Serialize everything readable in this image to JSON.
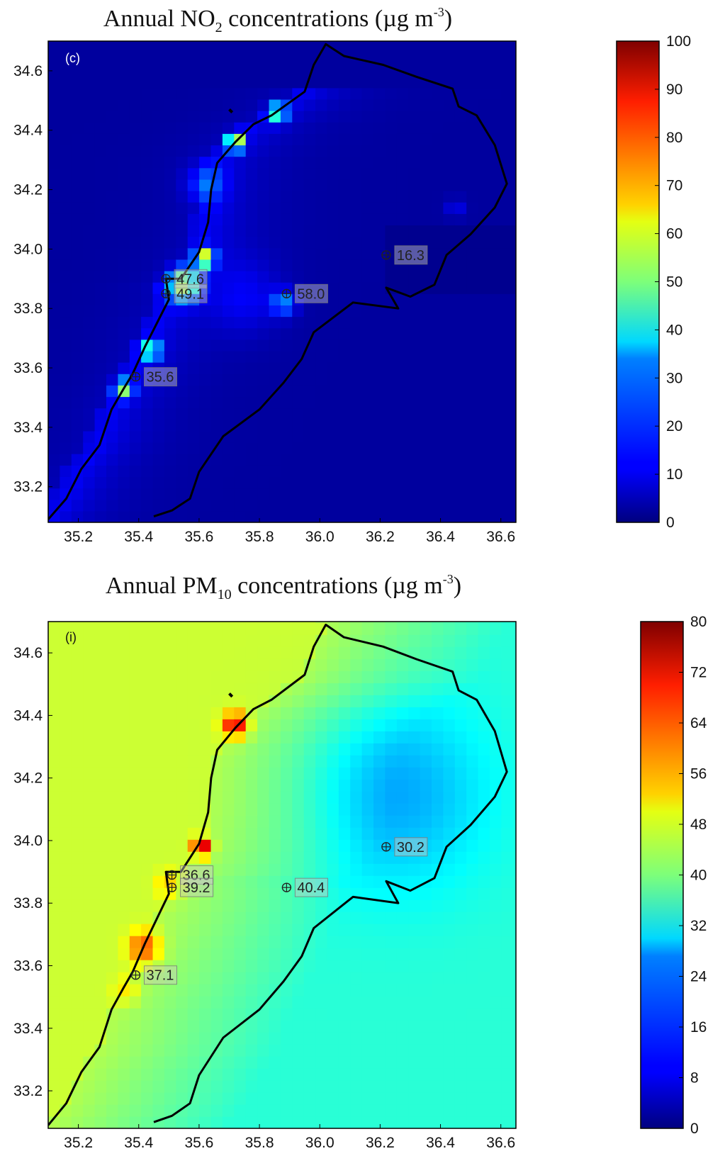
{
  "chart_data": [
    {
      "type": "heatmap",
      "title_main": "Annual NO",
      "title_sub": "2",
      "title_rest": " concentrations (µg m",
      "title_sup": "-3",
      "title_end": ")",
      "panel_label": "(c)",
      "xlim": [
        35.1,
        36.65
      ],
      "ylim": [
        33.08,
        34.7
      ],
      "x_ticks": [
        "35.2",
        "35.4",
        "35.6",
        "35.8",
        "36.0",
        "36.2",
        "36.4",
        "36.6"
      ],
      "y_ticks": [
        "33.2",
        "33.4",
        "33.6",
        "33.8",
        "34.0",
        "34.2",
        "34.4",
        "34.6"
      ],
      "colorbar": {
        "min": 0,
        "max": 100,
        "ticks": [
          "0",
          "10",
          "20",
          "30",
          "40",
          "50",
          "60",
          "70",
          "80",
          "90",
          "100"
        ]
      },
      "background_value": 3,
      "stations": [
        {
          "lon": 35.49,
          "lat": 33.9,
          "label": "47.6"
        },
        {
          "lon": 35.49,
          "lat": 33.85,
          "label": "49.1"
        },
        {
          "lon": 35.89,
          "lat": 33.85,
          "label": "58.0"
        },
        {
          "lon": 36.22,
          "lat": 33.98,
          "label": "16.3"
        },
        {
          "lon": 35.39,
          "lat": 33.57,
          "label": "35.6"
        }
      ]
    },
    {
      "type": "heatmap",
      "title_main": "Annual PM",
      "title_sub": "10",
      "title_rest": " concentrations (µg m",
      "title_sup": "-3",
      "title_end": ")",
      "panel_label": "(i)",
      "xlim": [
        35.1,
        36.65
      ],
      "ylim": [
        33.08,
        34.7
      ],
      "x_ticks": [
        "35.2",
        "35.4",
        "35.6",
        "35.8",
        "36.0",
        "36.2",
        "36.4",
        "36.6"
      ],
      "y_ticks": [
        "33.2",
        "33.4",
        "33.6",
        "33.8",
        "34.0",
        "34.2",
        "34.4",
        "34.6"
      ],
      "colorbar": {
        "min": 0,
        "max": 80,
        "ticks": [
          "0",
          "8",
          "16",
          "24",
          "32",
          "40",
          "48",
          "56",
          "64",
          "72",
          "80"
        ]
      },
      "background_value": 46,
      "stations": [
        {
          "lon": 35.51,
          "lat": 33.89,
          "label": "36.6"
        },
        {
          "lon": 35.51,
          "lat": 33.85,
          "label": "39.2"
        },
        {
          "lon": 35.89,
          "lat": 33.85,
          "label": "40.4"
        },
        {
          "lon": 36.22,
          "lat": 33.98,
          "label": "30.2"
        },
        {
          "lon": 35.39,
          "lat": 33.57,
          "label": "37.1"
        }
      ]
    }
  ]
}
